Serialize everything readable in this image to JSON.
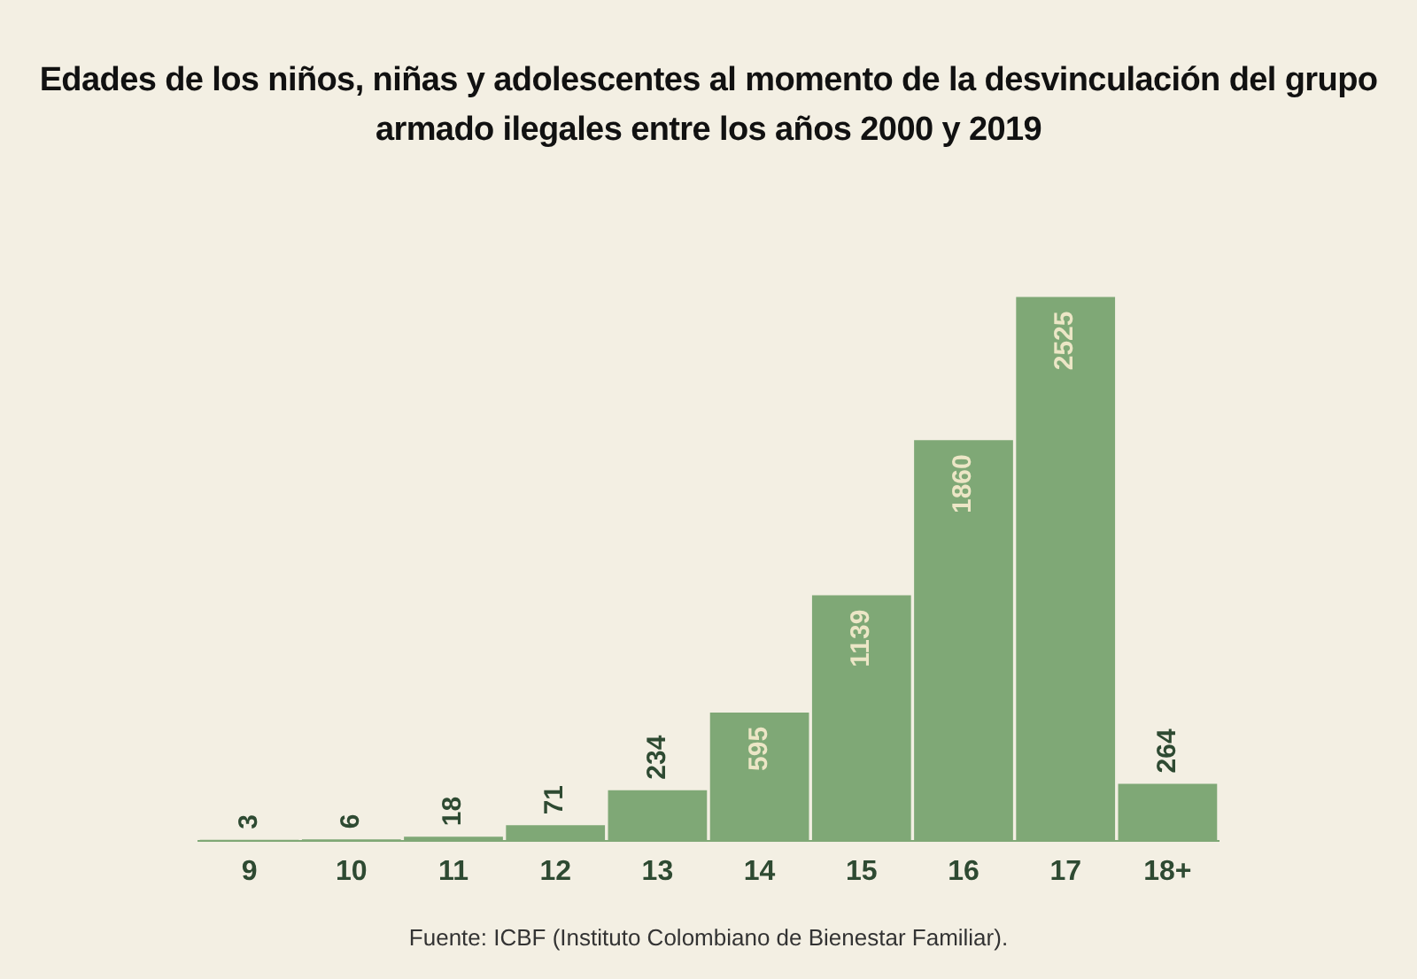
{
  "chart_data": {
    "type": "bar",
    "title": "Edades de los niños, niñas y adolescentes al momento de la desvinculación del grupo armado ilegales entre los años 2000 y 2019",
    "categories": [
      "9",
      "10",
      "11",
      "12",
      "13",
      "14",
      "15",
      "16",
      "17",
      "18+"
    ],
    "values": [
      3,
      6,
      18,
      71,
      234,
      595,
      1139,
      1860,
      2525,
      264
    ],
    "color": "#7fa876",
    "data_labels": true,
    "grid": false,
    "legend": false,
    "annotations": [
      "Fuente: ICBF (Instituto Colombiano de Bienestar Familiar)."
    ]
  }
}
